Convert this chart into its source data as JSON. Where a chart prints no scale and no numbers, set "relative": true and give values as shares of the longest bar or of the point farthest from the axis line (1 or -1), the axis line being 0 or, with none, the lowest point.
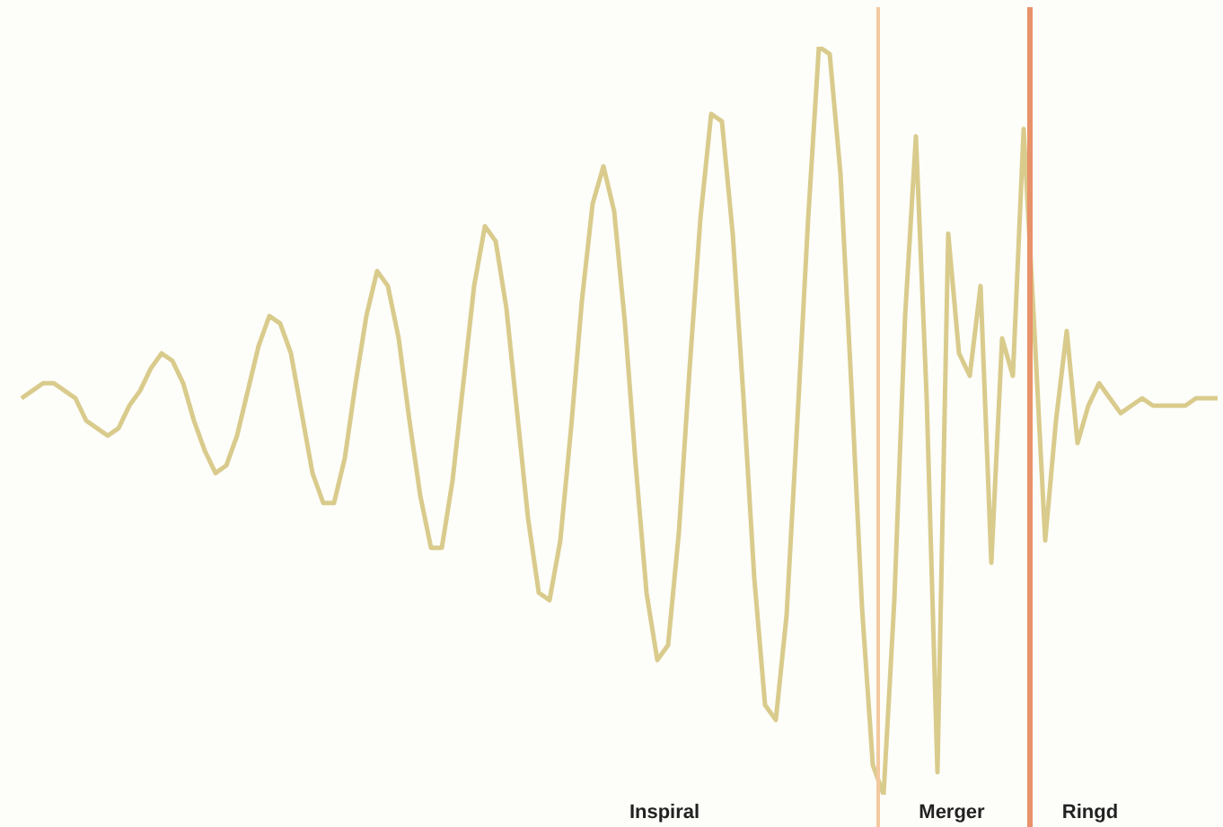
{
  "chart_data": {
    "type": "line",
    "relative": true,
    "marker": "none",
    "line_style": "solid",
    "categories": [
      null,
      null,
      null,
      null,
      null,
      null,
      null,
      null,
      null,
      null,
      null,
      null,
      null,
      null,
      null,
      null,
      null,
      null,
      null,
      null,
      null,
      null,
      null,
      null,
      null,
      null,
      null,
      null,
      null,
      null,
      null,
      null,
      null,
      null,
      null,
      null,
      null,
      null,
      null,
      null,
      null,
      null,
      null,
      null,
      null,
      null,
      null,
      null,
      null,
      null,
      null,
      null,
      null,
      null,
      null,
      null,
      null,
      null,
      null,
      null,
      null,
      null,
      null,
      null,
      null,
      null,
      null,
      null,
      null,
      null,
      null,
      null,
      null,
      null,
      null,
      null,
      null,
      null,
      null,
      null,
      null,
      null,
      null,
      null,
      null,
      null,
      null,
      null,
      null,
      null,
      null,
      null,
      null,
      null,
      null,
      null,
      null,
      null,
      null,
      null,
      null,
      null,
      null,
      null,
      null,
      null,
      null,
      null,
      null,
      null,
      null,
      null
    ],
    "series": [
      {
        "color": "#d9cb8c",
        "values": [
          0.53,
          0.54,
          0.55,
          0.55,
          0.54,
          0.53,
          0.5,
          0.49,
          0.48,
          0.49,
          0.52,
          0.54,
          0.57,
          0.59,
          0.58,
          0.55,
          0.5,
          0.46,
          0.43,
          0.44,
          0.48,
          0.54,
          0.6,
          0.64,
          0.63,
          0.59,
          0.51,
          0.43,
          0.39,
          0.39,
          0.45,
          0.55,
          0.64,
          0.7,
          0.68,
          0.61,
          0.5,
          0.4,
          0.33,
          0.33,
          0.42,
          0.55,
          0.68,
          0.76,
          0.74,
          0.65,
          0.51,
          0.37,
          0.27,
          0.26,
          0.34,
          0.49,
          0.66,
          0.79,
          0.84,
          0.78,
          0.63,
          0.44,
          0.27,
          0.18,
          0.2,
          0.35,
          0.57,
          0.77,
          0.91,
          0.9,
          0.75,
          0.53,
          0.29,
          0.12,
          0.1,
          0.24,
          0.5,
          0.77,
          1,
          0.99,
          0.83,
          0.55,
          0.25,
          0.04,
          0,
          0.26,
          0.64,
          0.88,
          0.53,
          0.03,
          0.75,
          0.59,
          0.56,
          0.68,
          0.31,
          0.61,
          0.56,
          0.89,
          0.62,
          0.34,
          0.5,
          0.62,
          0.47,
          0.52,
          0.55,
          0.53,
          0.51,
          0.52,
          0.53,
          0.52,
          0.52,
          0.52,
          0.52,
          0.53,
          0.53,
          0.53
        ]
      }
    ],
    "annotations": [
      "Inspiral",
      "Merger",
      "Ringd"
    ]
  }
}
